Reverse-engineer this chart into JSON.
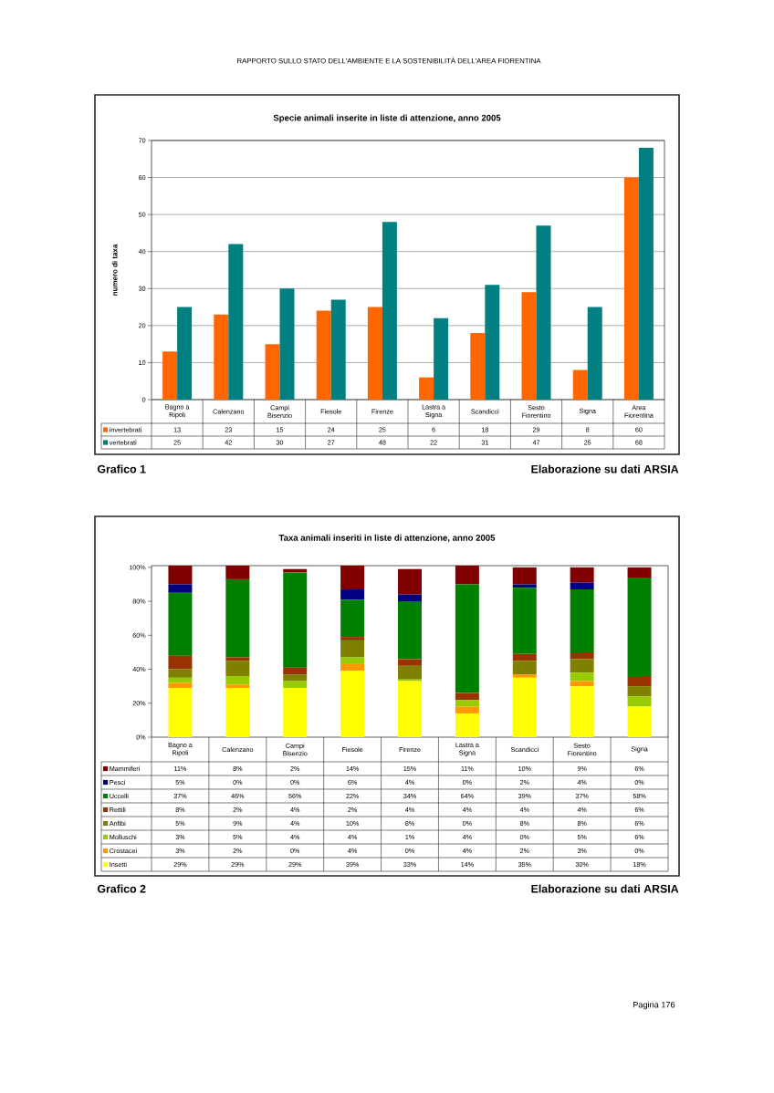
{
  "chart_data": [
    {
      "type": "bar",
      "title": "Specie animali inserite in liste di attenzione, anno 2005",
      "ylabel": "numero di taxa",
      "categories": [
        "Bagno a Ripoli",
        "Calenzano",
        "Campi Bisenzio",
        "Fiesole",
        "Firenze",
        "Lastra a Signa",
        "Scandicci",
        "Sesto Fiorentino",
        "Signa",
        "Area Fiorentina"
      ],
      "series": [
        {
          "name": "invertebrati",
          "color": "#ff6600",
          "values": [
            13,
            23,
            15,
            24,
            25,
            6,
            18,
            29,
            8,
            60
          ]
        },
        {
          "name": "vertebrati",
          "color": "#008080",
          "values": [
            25,
            42,
            30,
            27,
            48,
            22,
            31,
            47,
            25,
            68
          ]
        }
      ],
      "ylim": [
        0,
        70
      ],
      "yticks": [
        0,
        10,
        20,
        30,
        40,
        50,
        60,
        70
      ],
      "grid": "y",
      "legend": "bottom left",
      "data_labels": true,
      "annotations": [
        "RAPPORTO SULLO STATO DELL'AMBIENTE E LA SOSTENIBILITÀ DELL'AREA FIORENTINA",
        "Grafico 1",
        "Elaborazione su dati ARSIA"
      ]
    },
    {
      "type": "bar",
      "stacked": true,
      "title": "Taxa animali inseriti in liste di attenzione, anno 2005",
      "categories": [
        "Bagno a Ripoli",
        "Calenzano",
        "Campi Bisenzio",
        "Fiesole",
        "Firenze",
        "Lastra a Signa",
        "Scandicci",
        "Sesto Fiorentino",
        "Signa"
      ],
      "series": [
        {
          "name": "Insetti",
          "color": "#ffff00",
          "values": [
            29,
            29,
            29,
            39,
            33,
            14,
            35,
            30,
            18
          ],
          "value_labels": [
            "29%",
            "29%",
            "29%",
            "39%",
            "33%",
            "14%",
            "35%",
            "30%",
            "18%"
          ]
        },
        {
          "name": "Crostacei",
          "color": "#ff9900",
          "values": [
            3,
            2,
            0,
            4,
            0,
            4,
            2,
            3,
            0
          ],
          "value_labels": [
            "3%",
            "2%",
            "0%",
            "4%",
            "0%",
            "4%",
            "2%",
            "3%",
            "0%"
          ]
        },
        {
          "name": "Molluschi",
          "color": "#99cc00",
          "values": [
            3,
            5,
            4,
            4,
            1,
            4,
            0,
            5,
            6
          ],
          "value_labels": [
            "3%",
            "5%",
            "4%",
            "4%",
            "1%",
            "4%",
            "0%",
            "5%",
            "6%"
          ]
        },
        {
          "name": "Anfibi",
          "color": "#808000",
          "values": [
            5,
            9,
            4,
            10,
            8,
            0,
            8,
            8,
            6
          ],
          "value_labels": [
            "5%",
            "9%",
            "4%",
            "10%",
            "8%",
            "0%",
            "8%",
            "8%",
            "6%"
          ]
        },
        {
          "name": "Rettili",
          "color": "#993300",
          "values": [
            8,
            2,
            4,
            2,
            4,
            4,
            4,
            4,
            6
          ],
          "value_labels": [
            "8%",
            "2%",
            "4%",
            "2%",
            "4%",
            "4%",
            "4%",
            "4%",
            "6%"
          ]
        },
        {
          "name": "Uccelli",
          "color": "#008000",
          "values": [
            37,
            46,
            56,
            22,
            34,
            64,
            39,
            37,
            58
          ],
          "value_labels": [
            "37%",
            "46%",
            "56%",
            "22%",
            "34%",
            "64%",
            "39%",
            "37%",
            "58%"
          ]
        },
        {
          "name": "Pesci",
          "color": "#000080",
          "values": [
            5,
            0,
            0,
            6,
            4,
            0,
            2,
            4,
            0
          ],
          "value_labels": [
            "5%",
            "0%",
            "0%",
            "6%",
            "4%",
            "0%",
            "2%",
            "4%",
            "0%"
          ]
        },
        {
          "name": "Mammiferi",
          "color": "#800000",
          "values": [
            11,
            8,
            2,
            14,
            15,
            11,
            10,
            9,
            6
          ],
          "value_labels": [
            "11%",
            "8%",
            "2%",
            "14%",
            "15%",
            "11%",
            "10%",
            "9%",
            "6%"
          ]
        }
      ],
      "ylim": [
        0,
        101
      ],
      "yticks": [
        {
          "value": 0,
          "label": "0%"
        },
        {
          "value": 20,
          "label": "20%"
        },
        {
          "value": 40,
          "label": "40%"
        },
        {
          "value": 60,
          "label": "60%"
        },
        {
          "value": 80,
          "label": "80%"
        },
        {
          "value": 100,
          "label": "100%"
        }
      ],
      "legend": "bottom left",
      "annotations": [
        "Grafico 2",
        "Elaborazione su dati ARSIA",
        "Pagina 176"
      ]
    }
  ]
}
